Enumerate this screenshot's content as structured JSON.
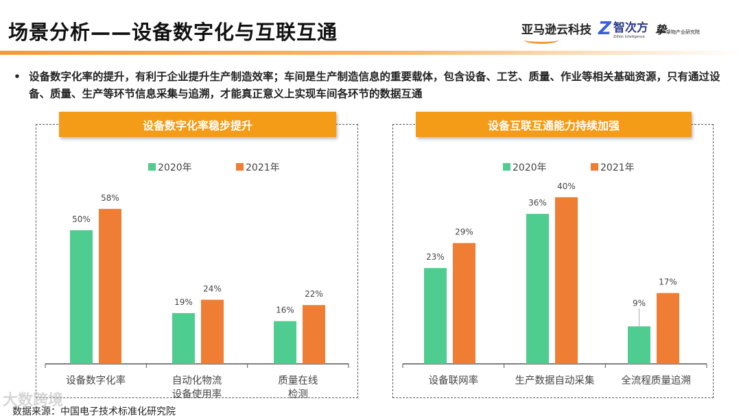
{
  "header": {
    "title": "场景分析——设备数字化与互联互通",
    "logos": [
      "亚马逊云科技",
      "智次方",
      "Zillion Intelligence",
      "挚物产业研究院"
    ]
  },
  "bullet": "设备数字化率的提升，有利于企业提升生产制造效率；车间是生产制造信息的重要载体，包含设备、工艺、质量、作业等相关基础资源，只有通过设备、质量、生产等环节信息采集与追溯，才能真正意义上实现车间各环节的数据互通",
  "source": "数据来源：中国电子技术标准化研究院",
  "watermark": "大数跨境",
  "colors": {
    "2020": "#4fcc8f",
    "2021": "#ef7d33",
    "header": "#f49b17"
  },
  "chart_data": [
    {
      "type": "bar",
      "title": "设备数字化率稳步提升",
      "categories": [
        "设备数字化率",
        "自动化物流\n设备使用率",
        "质量在线\n检测"
      ],
      "series": [
        {
          "name": "2020年",
          "values": [
            50,
            19,
            16
          ]
        },
        {
          "name": "2021年",
          "values": [
            58,
            24,
            22
          ]
        }
      ],
      "unit": "%",
      "legend": "top"
    },
    {
      "type": "bar",
      "title": "设备互联互通能力持续加强",
      "categories": [
        "设备联网率",
        "生产数据自动采集",
        "全流程质量追溯"
      ],
      "series": [
        {
          "name": "2020年",
          "values": [
            23,
            36,
            9
          ]
        },
        {
          "name": "2021年",
          "values": [
            29,
            40,
            17
          ]
        }
      ],
      "unit": "%",
      "legend": "top"
    }
  ]
}
